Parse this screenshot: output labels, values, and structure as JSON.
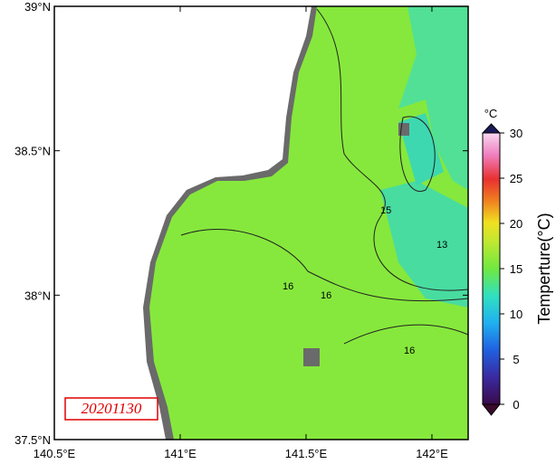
{
  "map": {
    "date": "20201130",
    "lonlim": [
      140.5,
      142.144
    ],
    "latlim": [
      37.5,
      39
    ],
    "lon_ticks": [
      {
        "value": 140.5,
        "label": "140.5°E"
      },
      {
        "value": 141,
        "label": "141°E"
      },
      {
        "value": 141.5,
        "label": "141.5°E"
      },
      {
        "value": 142,
        "label": "142°E"
      }
    ],
    "lat_ticks": [
      {
        "value": 37.5,
        "label": "37.5°N"
      },
      {
        "value": 38,
        "label": "38°N"
      },
      {
        "value": 38.5,
        "label": "38.5°N"
      },
      {
        "value": 39,
        "label": "39°N"
      }
    ],
    "contour_labels": [
      "15",
      "13",
      "16",
      "16",
      "16"
    ],
    "colorbar": {
      "unit": "°C",
      "label": "Temperture(°C)",
      "lim": [
        0,
        30
      ],
      "ticks": [
        0,
        5,
        10,
        15,
        20,
        25,
        30
      ]
    }
  }
}
